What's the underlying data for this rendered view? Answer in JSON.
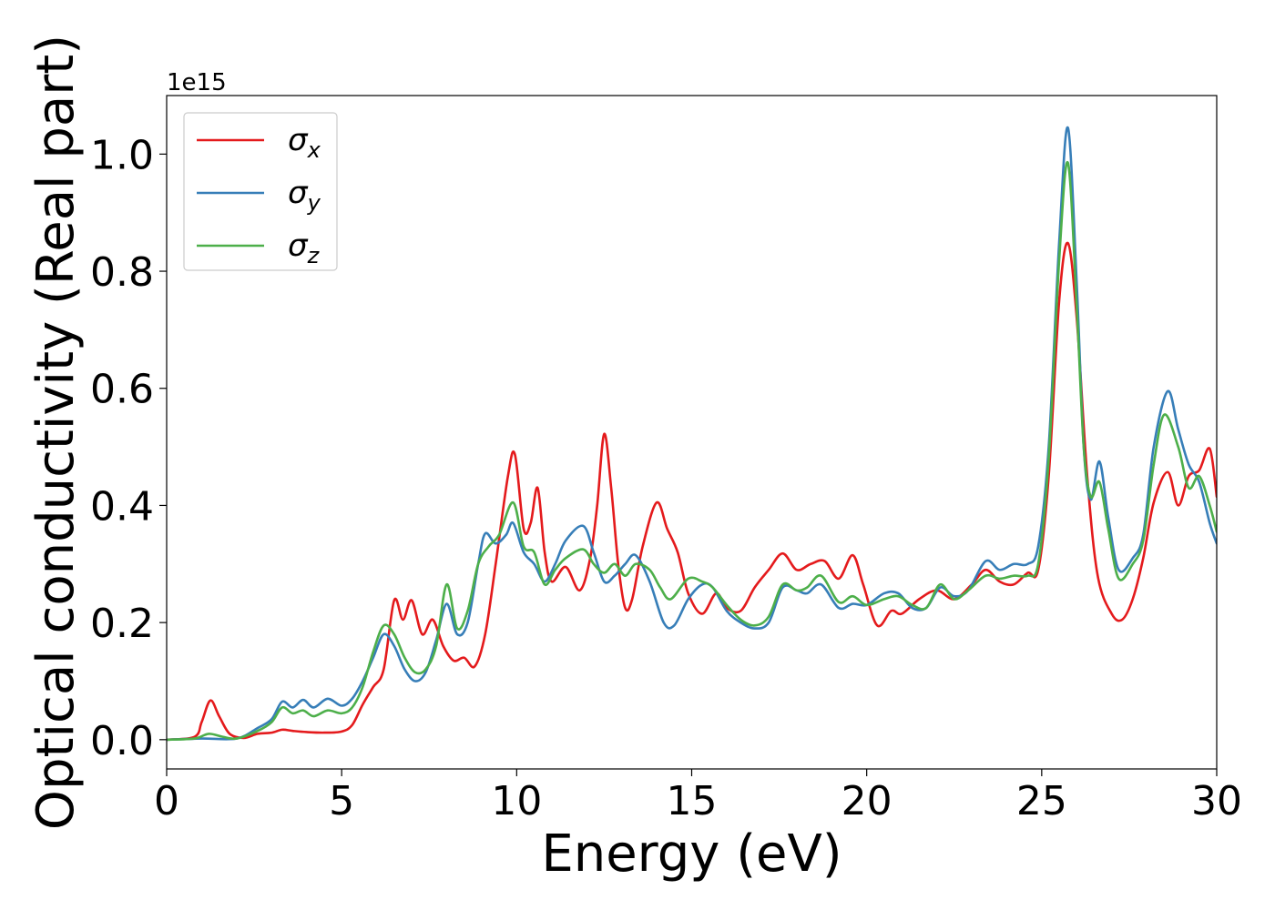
{
  "chart_data": {
    "type": "line",
    "xlabel": "Energy (eV)",
    "ylabel": "Optical conductivity (Real part)",
    "y_offset_label": "1e15",
    "xlim": [
      0,
      30
    ],
    "ylim": [
      -0.05,
      1.1
    ],
    "xticks": [
      0,
      5,
      10,
      15,
      20,
      25,
      30
    ],
    "xtick_labels": [
      "0",
      "5",
      "10",
      "15",
      "20",
      "25",
      "30"
    ],
    "yticks": [
      0.0,
      0.2,
      0.4,
      0.6,
      0.8,
      1.0
    ],
    "ytick_labels": [
      "0.0",
      "0.2",
      "0.4",
      "0.6",
      "0.8",
      "1.0"
    ],
    "grid": false,
    "legend_position": "top-left",
    "series": [
      {
        "name": "σx",
        "symbol": "σ",
        "subscript": "x",
        "color": "#e41a1c",
        "points": [
          [
            0,
            0
          ],
          [
            0.8,
            0.005
          ],
          [
            1.0,
            0.03
          ],
          [
            1.25,
            0.067
          ],
          [
            1.5,
            0.04
          ],
          [
            1.8,
            0.01
          ],
          [
            2.2,
            0.003
          ],
          [
            2.6,
            0.01
          ],
          [
            3.0,
            0.012
          ],
          [
            3.3,
            0.017
          ],
          [
            3.6,
            0.015
          ],
          [
            4.0,
            0.013
          ],
          [
            4.5,
            0.012
          ],
          [
            5.0,
            0.014
          ],
          [
            5.3,
            0.025
          ],
          [
            5.6,
            0.06
          ],
          [
            5.9,
            0.09
          ],
          [
            6.2,
            0.12
          ],
          [
            6.5,
            0.238
          ],
          [
            6.75,
            0.205
          ],
          [
            7.0,
            0.238
          ],
          [
            7.3,
            0.18
          ],
          [
            7.6,
            0.205
          ],
          [
            7.9,
            0.16
          ],
          [
            8.2,
            0.135
          ],
          [
            8.5,
            0.14
          ],
          [
            8.8,
            0.125
          ],
          [
            9.1,
            0.18
          ],
          [
            9.4,
            0.3
          ],
          [
            9.75,
            0.45
          ],
          [
            9.95,
            0.487
          ],
          [
            10.2,
            0.36
          ],
          [
            10.4,
            0.37
          ],
          [
            10.6,
            0.43
          ],
          [
            10.8,
            0.32
          ],
          [
            11.0,
            0.27
          ],
          [
            11.4,
            0.295
          ],
          [
            11.8,
            0.255
          ],
          [
            12.1,
            0.31
          ],
          [
            12.3,
            0.4
          ],
          [
            12.5,
            0.522
          ],
          [
            12.7,
            0.43
          ],
          [
            12.9,
            0.3
          ],
          [
            13.1,
            0.225
          ],
          [
            13.3,
            0.24
          ],
          [
            13.6,
            0.33
          ],
          [
            14.0,
            0.405
          ],
          [
            14.3,
            0.36
          ],
          [
            14.6,
            0.32
          ],
          [
            14.9,
            0.25
          ],
          [
            15.3,
            0.215
          ],
          [
            15.7,
            0.25
          ],
          [
            16.0,
            0.225
          ],
          [
            16.4,
            0.22
          ],
          [
            16.8,
            0.26
          ],
          [
            17.2,
            0.29
          ],
          [
            17.6,
            0.318
          ],
          [
            18.0,
            0.29
          ],
          [
            18.4,
            0.3
          ],
          [
            18.8,
            0.305
          ],
          [
            19.2,
            0.275
          ],
          [
            19.6,
            0.315
          ],
          [
            19.9,
            0.265
          ],
          [
            20.3,
            0.195
          ],
          [
            20.7,
            0.22
          ],
          [
            21.0,
            0.215
          ],
          [
            21.5,
            0.24
          ],
          [
            22.0,
            0.255
          ],
          [
            22.5,
            0.24
          ],
          [
            23.0,
            0.265
          ],
          [
            23.4,
            0.29
          ],
          [
            23.8,
            0.27
          ],
          [
            24.2,
            0.265
          ],
          [
            24.6,
            0.285
          ],
          [
            24.9,
            0.29
          ],
          [
            25.2,
            0.45
          ],
          [
            25.5,
            0.75
          ],
          [
            25.75,
            0.848
          ],
          [
            26.0,
            0.72
          ],
          [
            26.3,
            0.45
          ],
          [
            26.6,
            0.28
          ],
          [
            27.0,
            0.215
          ],
          [
            27.3,
            0.205
          ],
          [
            27.6,
            0.24
          ],
          [
            27.9,
            0.31
          ],
          [
            28.2,
            0.405
          ],
          [
            28.6,
            0.457
          ],
          [
            28.9,
            0.4
          ],
          [
            29.2,
            0.45
          ],
          [
            29.5,
            0.46
          ],
          [
            29.8,
            0.497
          ],
          [
            30.0,
            0.415
          ]
        ]
      },
      {
        "name": "σy",
        "symbol": "σ",
        "subscript": "y",
        "color": "#377eb8",
        "points": [
          [
            0,
            0
          ],
          [
            1.0,
            0.002
          ],
          [
            2.0,
            0.002
          ],
          [
            2.6,
            0.02
          ],
          [
            3.0,
            0.035
          ],
          [
            3.3,
            0.065
          ],
          [
            3.6,
            0.055
          ],
          [
            3.9,
            0.068
          ],
          [
            4.2,
            0.055
          ],
          [
            4.6,
            0.07
          ],
          [
            5.0,
            0.058
          ],
          [
            5.3,
            0.07
          ],
          [
            5.6,
            0.1
          ],
          [
            5.9,
            0.14
          ],
          [
            6.2,
            0.18
          ],
          [
            6.5,
            0.16
          ],
          [
            6.8,
            0.12
          ],
          [
            7.1,
            0.1
          ],
          [
            7.4,
            0.115
          ],
          [
            7.7,
            0.17
          ],
          [
            8.0,
            0.232
          ],
          [
            8.3,
            0.18
          ],
          [
            8.6,
            0.2
          ],
          [
            8.9,
            0.3
          ],
          [
            9.1,
            0.352
          ],
          [
            9.4,
            0.335
          ],
          [
            9.7,
            0.35
          ],
          [
            9.9,
            0.37
          ],
          [
            10.2,
            0.32
          ],
          [
            10.5,
            0.3
          ],
          [
            10.8,
            0.27
          ],
          [
            11.1,
            0.3
          ],
          [
            11.4,
            0.34
          ],
          [
            11.9,
            0.365
          ],
          [
            12.2,
            0.32
          ],
          [
            12.5,
            0.27
          ],
          [
            12.8,
            0.28
          ],
          [
            13.1,
            0.3
          ],
          [
            13.4,
            0.315
          ],
          [
            13.8,
            0.27
          ],
          [
            14.2,
            0.2
          ],
          [
            14.5,
            0.195
          ],
          [
            14.9,
            0.24
          ],
          [
            15.3,
            0.265
          ],
          [
            15.6,
            0.26
          ],
          [
            16.0,
            0.22
          ],
          [
            16.4,
            0.2
          ],
          [
            16.8,
            0.19
          ],
          [
            17.2,
            0.2
          ],
          [
            17.6,
            0.26
          ],
          [
            18.0,
            0.255
          ],
          [
            18.3,
            0.25
          ],
          [
            18.7,
            0.265
          ],
          [
            19.2,
            0.225
          ],
          [
            19.6,
            0.232
          ],
          [
            20.0,
            0.23
          ],
          [
            20.5,
            0.25
          ],
          [
            20.9,
            0.25
          ],
          [
            21.3,
            0.225
          ],
          [
            21.7,
            0.225
          ],
          [
            22.1,
            0.26
          ],
          [
            22.5,
            0.245
          ],
          [
            22.9,
            0.255
          ],
          [
            23.4,
            0.305
          ],
          [
            23.8,
            0.29
          ],
          [
            24.2,
            0.3
          ],
          [
            24.6,
            0.3
          ],
          [
            24.9,
            0.33
          ],
          [
            25.2,
            0.5
          ],
          [
            25.5,
            0.85
          ],
          [
            25.75,
            1.045
          ],
          [
            26.0,
            0.78
          ],
          [
            26.2,
            0.5
          ],
          [
            26.4,
            0.41
          ],
          [
            26.65,
            0.475
          ],
          [
            26.9,
            0.38
          ],
          [
            27.2,
            0.29
          ],
          [
            27.6,
            0.31
          ],
          [
            27.9,
            0.35
          ],
          [
            28.2,
            0.5
          ],
          [
            28.6,
            0.595
          ],
          [
            28.9,
            0.53
          ],
          [
            29.2,
            0.47
          ],
          [
            29.5,
            0.44
          ],
          [
            29.8,
            0.37
          ],
          [
            30.0,
            0.335
          ]
        ]
      },
      {
        "name": "σz",
        "symbol": "σ",
        "subscript": "z",
        "color": "#4daf4a",
        "points": [
          [
            0,
            0
          ],
          [
            0.8,
            0.002
          ],
          [
            1.2,
            0.01
          ],
          [
            1.6,
            0.005
          ],
          [
            2.0,
            0.002
          ],
          [
            2.6,
            0.015
          ],
          [
            3.0,
            0.03
          ],
          [
            3.3,
            0.055
          ],
          [
            3.6,
            0.045
          ],
          [
            3.9,
            0.05
          ],
          [
            4.2,
            0.04
          ],
          [
            4.6,
            0.05
          ],
          [
            5.0,
            0.045
          ],
          [
            5.3,
            0.055
          ],
          [
            5.6,
            0.09
          ],
          [
            5.9,
            0.15
          ],
          [
            6.2,
            0.195
          ],
          [
            6.5,
            0.18
          ],
          [
            6.8,
            0.14
          ],
          [
            7.1,
            0.115
          ],
          [
            7.4,
            0.12
          ],
          [
            7.7,
            0.16
          ],
          [
            8.0,
            0.265
          ],
          [
            8.3,
            0.19
          ],
          [
            8.6,
            0.22
          ],
          [
            8.9,
            0.3
          ],
          [
            9.2,
            0.33
          ],
          [
            9.5,
            0.35
          ],
          [
            9.9,
            0.405
          ],
          [
            10.2,
            0.33
          ],
          [
            10.5,
            0.32
          ],
          [
            10.8,
            0.265
          ],
          [
            11.1,
            0.29
          ],
          [
            11.4,
            0.31
          ],
          [
            11.9,
            0.325
          ],
          [
            12.2,
            0.3
          ],
          [
            12.5,
            0.285
          ],
          [
            12.8,
            0.3
          ],
          [
            13.1,
            0.28
          ],
          [
            13.4,
            0.3
          ],
          [
            13.8,
            0.29
          ],
          [
            14.1,
            0.26
          ],
          [
            14.4,
            0.24
          ],
          [
            14.9,
            0.275
          ],
          [
            15.3,
            0.27
          ],
          [
            15.6,
            0.26
          ],
          [
            16.0,
            0.23
          ],
          [
            16.4,
            0.205
          ],
          [
            16.8,
            0.195
          ],
          [
            17.2,
            0.21
          ],
          [
            17.6,
            0.265
          ],
          [
            18.0,
            0.255
          ],
          [
            18.3,
            0.26
          ],
          [
            18.7,
            0.28
          ],
          [
            19.2,
            0.235
          ],
          [
            19.6,
            0.245
          ],
          [
            20.0,
            0.23
          ],
          [
            20.5,
            0.24
          ],
          [
            20.9,
            0.245
          ],
          [
            21.3,
            0.23
          ],
          [
            21.7,
            0.225
          ],
          [
            22.1,
            0.265
          ],
          [
            22.5,
            0.24
          ],
          [
            22.9,
            0.255
          ],
          [
            23.4,
            0.28
          ],
          [
            23.8,
            0.275
          ],
          [
            24.2,
            0.28
          ],
          [
            24.6,
            0.28
          ],
          [
            24.9,
            0.3
          ],
          [
            25.2,
            0.48
          ],
          [
            25.5,
            0.82
          ],
          [
            25.75,
            0.985
          ],
          [
            26.0,
            0.74
          ],
          [
            26.2,
            0.5
          ],
          [
            26.4,
            0.415
          ],
          [
            26.65,
            0.44
          ],
          [
            26.9,
            0.36
          ],
          [
            27.2,
            0.275
          ],
          [
            27.6,
            0.3
          ],
          [
            27.9,
            0.34
          ],
          [
            28.2,
            0.47
          ],
          [
            28.5,
            0.555
          ],
          [
            28.9,
            0.5
          ],
          [
            29.2,
            0.43
          ],
          [
            29.5,
            0.45
          ],
          [
            29.8,
            0.4
          ],
          [
            30.0,
            0.355
          ]
        ]
      }
    ]
  }
}
